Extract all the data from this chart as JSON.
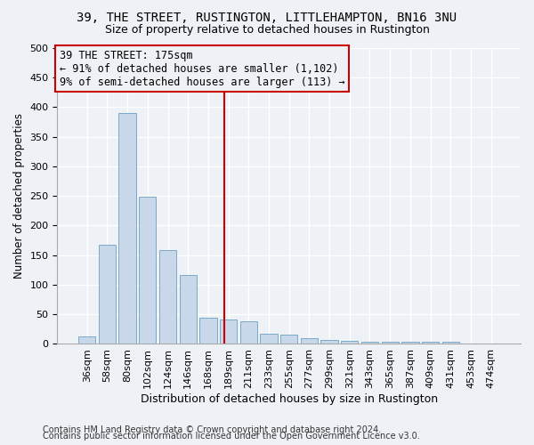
{
  "title1": "39, THE STREET, RUSTINGTON, LITTLEHAMPTON, BN16 3NU",
  "title2": "Size of property relative to detached houses in Rustington",
  "xlabel": "Distribution of detached houses by size in Rustington",
  "ylabel": "Number of detached properties",
  "bar_labels": [
    "36sqm",
    "58sqm",
    "80sqm",
    "102sqm",
    "124sqm",
    "146sqm",
    "168sqm",
    "189sqm",
    "211sqm",
    "233sqm",
    "255sqm",
    "277sqm",
    "299sqm",
    "321sqm",
    "343sqm",
    "365sqm",
    "387sqm",
    "409sqm",
    "431sqm",
    "453sqm",
    "474sqm"
  ],
  "bar_values": [
    13,
    168,
    390,
    249,
    158,
    116,
    44,
    42,
    38,
    17,
    15,
    9,
    6,
    5,
    3,
    4,
    3,
    3,
    4,
    0,
    0
  ],
  "bar_color": "#c8d8ea",
  "bar_edgecolor": "#7aaac8",
  "vline_x_index": 6.78,
  "vline_color": "#cc0000",
  "annotation_title": "39 THE STREET: 175sqm",
  "annotation_line1": "← 91% of detached houses are smaller (1,102)",
  "annotation_line2": "9% of semi-detached houses are larger (113) →",
  "annotation_box_color": "#cc0000",
  "ylim": [
    0,
    500
  ],
  "yticks": [
    0,
    50,
    100,
    150,
    200,
    250,
    300,
    350,
    400,
    450,
    500
  ],
  "footer1": "Contains HM Land Registry data © Crown copyright and database right 2024.",
  "footer2": "Contains public sector information licensed under the Open Government Licence v3.0.",
  "bg_color": "#eef2f6",
  "grid_color": "#ffffff",
  "title_fontsize": 10,
  "subtitle_fontsize": 9,
  "ylabel_fontsize": 8.5,
  "xlabel_fontsize": 9,
  "tick_fontsize": 8,
  "annotation_fontsize": 8.5
}
